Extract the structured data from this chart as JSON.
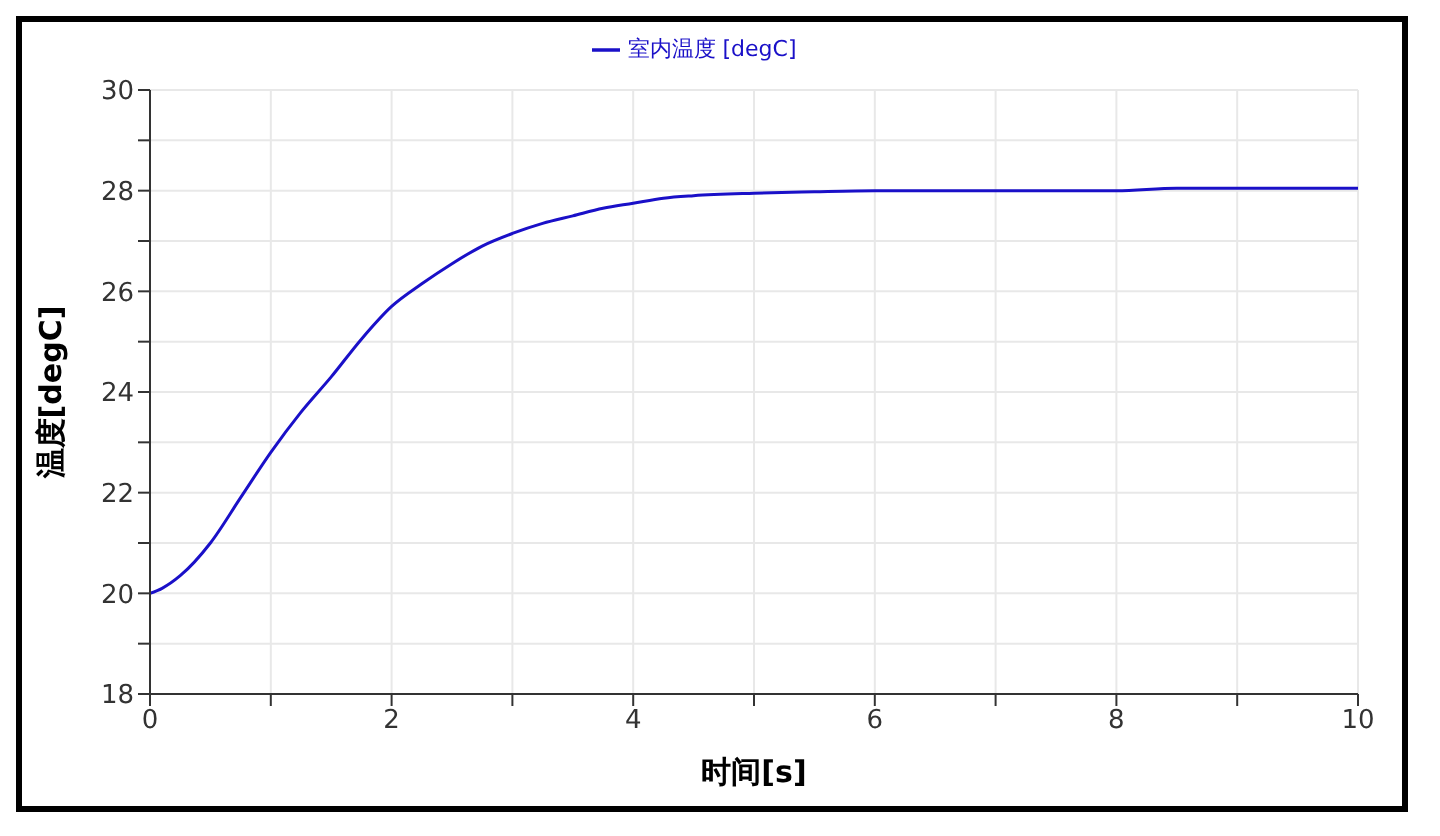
{
  "chart_data": {
    "type": "line",
    "xlabel": "时间[s]",
    "ylabel": "温度[degC]",
    "x": [
      0,
      0.1,
      0.25,
      0.5,
      0.75,
      1,
      1.25,
      1.5,
      1.75,
      2,
      2.25,
      2.5,
      2.75,
      3,
      3.25,
      3.5,
      3.75,
      4,
      4.25,
      4.5,
      5,
      5.5,
      6,
      7,
      8,
      8.5,
      9,
      10
    ],
    "series": [
      {
        "name": "室内温度 [degC]",
        "color": "#1a10c8",
        "values": [
          20,
          20.1,
          20.35,
          21,
          21.9,
          22.8,
          23.6,
          24.3,
          25.05,
          25.7,
          26.15,
          26.55,
          26.9,
          27.15,
          27.35,
          27.5,
          27.65,
          27.75,
          27.85,
          27.9,
          27.95,
          27.98,
          28,
          28,
          28,
          28.05,
          28.05,
          28.05
        ]
      }
    ],
    "xlim": [
      0,
      10
    ],
    "xticks": [
      0,
      {
        "value": 1,
        "label": null
      },
      2,
      {
        "value": 3,
        "label": null
      },
      4,
      {
        "value": 5,
        "label": null
      },
      6,
      {
        "value": 7,
        "label": null
      },
      8,
      {
        "value": 9,
        "label": null
      },
      10
    ],
    "ylim": [
      18,
      30
    ],
    "yticks": [
      18,
      {
        "value": 19,
        "label": null
      },
      20,
      {
        "value": 21,
        "label": null
      },
      22,
      {
        "value": 23,
        "label": null
      },
      24,
      {
        "value": 25,
        "label": null
      },
      26,
      {
        "value": 27,
        "label": null
      },
      28,
      {
        "value": 29,
        "label": null
      },
      30
    ],
    "grid": true,
    "legend": "top",
    "marker": "none",
    "line_style": "solid"
  }
}
